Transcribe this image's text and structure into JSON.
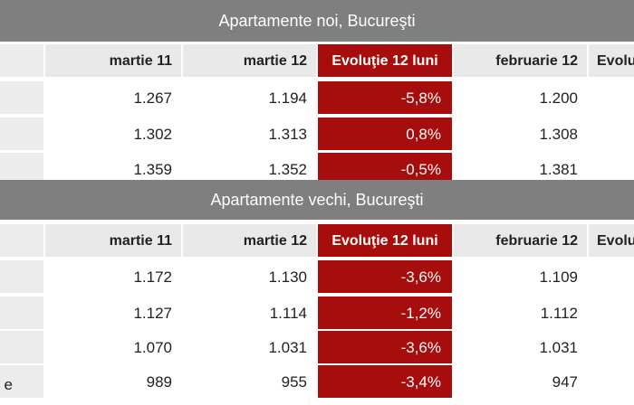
{
  "sections": [
    {
      "title": "Apartamente noi, Bucureşti",
      "headers": [
        "martie 11",
        "martie 12",
        "Evoluţie 12 luni",
        "februarie 12",
        "Evolu"
      ],
      "rows": [
        {
          "label": "",
          "v1": "1.267",
          "v2": "1.194",
          "evol": "-5,8%",
          "v4": "1.200"
        },
        {
          "label": "",
          "v1": "1.302",
          "v2": "1.313",
          "evol": "0,8%",
          "v4": "1.308"
        },
        {
          "label": "",
          "v1": "1.359",
          "v2": "1.352",
          "evol": "-0,5%",
          "v4": "1.381"
        }
      ]
    },
    {
      "title": "Apartamente vechi, Bucureşti",
      "headers": [
        "martie 11",
        "martie 12",
        "Evoluţie 12 luni",
        "februarie 12",
        "Evolu"
      ],
      "rows": [
        {
          "label": "",
          "v1": "1.172",
          "v2": "1.130",
          "evol": "-3,6%",
          "v4": "1.109"
        },
        {
          "label": "",
          "v1": "1.127",
          "v2": "1.114",
          "evol": "-1,2%",
          "v4": "1.112"
        },
        {
          "label": "",
          "v1": "1.070",
          "v2": "1.031",
          "evol": "-3,6%",
          "v4": "1.031"
        },
        {
          "label": "e",
          "v1": "989",
          "v2": "955",
          "evol": "-3,4%",
          "v4": "947"
        }
      ]
    }
  ],
  "colors": {
    "header_bar": "#7f7f7f",
    "evolution_column": "#a80d0d",
    "column_header": "#e9e9e9"
  }
}
